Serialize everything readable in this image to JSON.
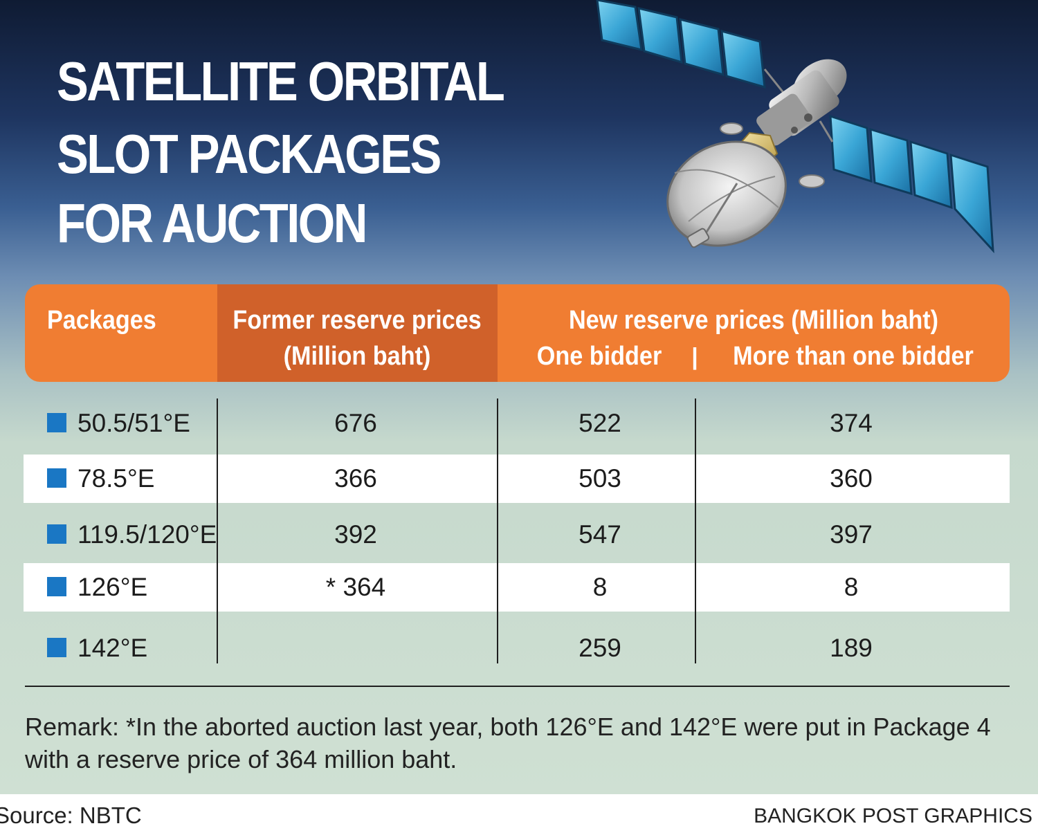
{
  "title": {
    "line1": "SATELLITE ORBITAL",
    "line2": "SLOT PACKAGES",
    "line3": "FOR AUCTION"
  },
  "chart_data": {
    "type": "table",
    "columns": {
      "packages": "Packages",
      "former_line1": "Former reserve prices",
      "former_line2": "(Million baht)",
      "new_group": "New reserve prices (Million baht)",
      "one_bidder": "One bidder",
      "separator": "|",
      "more_than_one": "More than one bidder"
    },
    "rows": [
      {
        "package": "50.5/51°E",
        "former": "676",
        "one_bidder": "522",
        "more_than_one": "374"
      },
      {
        "package": "78.5°E",
        "former": "366",
        "one_bidder": "503",
        "more_than_one": "360"
      },
      {
        "package": "119.5/120°E",
        "former": "392",
        "one_bidder": "547",
        "more_than_one": "397"
      },
      {
        "package": "126°E",
        "former": "* 364",
        "one_bidder": "8",
        "more_than_one": "8"
      },
      {
        "package": "142°E",
        "former": "",
        "one_bidder": "259",
        "more_than_one": "189"
      }
    ]
  },
  "remark": "Remark: *In the aborted auction last year, both 126°E and 142°E were put in Package 4 with a reserve price of 364 million baht.",
  "source": "Source: NBTC",
  "credit": "BANGKOK POST GRAPHICS",
  "colors": {
    "header_orange": "#f07d32",
    "header_dark_orange": "#d0612a",
    "bullet_blue": "#1a77c4",
    "panel_green": "#cfe0d3"
  },
  "icons": {
    "illustration": "satellite-icon",
    "row_marker": "square-bullet-icon"
  }
}
